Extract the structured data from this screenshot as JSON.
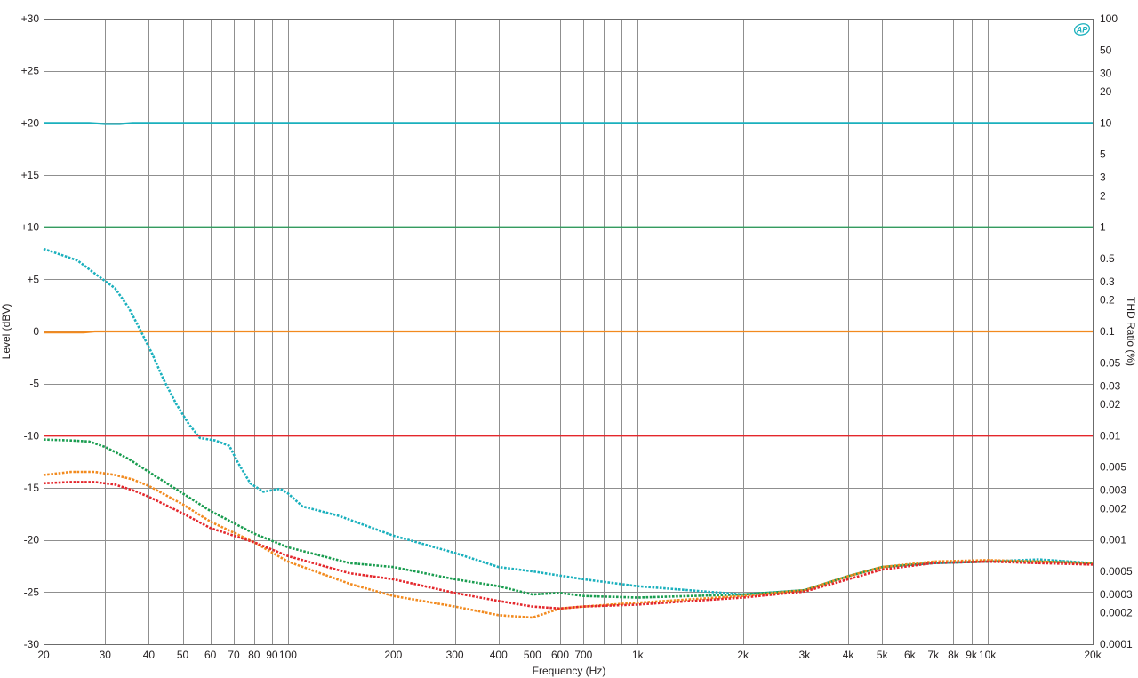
{
  "logo_text": "AP",
  "chart_data": {
    "type": "line",
    "title": "",
    "xlabel": "Frequency (Hz)",
    "ylabel": "Level (dBV)",
    "y2label": "THD Ratio (%)",
    "x_scale": "log",
    "y2_scale": "log",
    "xlim": [
      20,
      20000
    ],
    "ylim": [
      -30,
      30
    ],
    "y2lim": [
      0.0001,
      100
    ],
    "grid": true,
    "x_ticks": [
      {
        "v": 20,
        "label": "20"
      },
      {
        "v": 30,
        "label": "30"
      },
      {
        "v": 40,
        "label": "40"
      },
      {
        "v": 50,
        "label": "50"
      },
      {
        "v": 60,
        "label": "60"
      },
      {
        "v": 70,
        "label": "70"
      },
      {
        "v": 80,
        "label": "80"
      },
      {
        "v": 90,
        "label": "90"
      },
      {
        "v": 100,
        "label": "100"
      },
      {
        "v": 200,
        "label": "200"
      },
      {
        "v": 300,
        "label": "300"
      },
      {
        "v": 400,
        "label": "400"
      },
      {
        "v": 500,
        "label": "500"
      },
      {
        "v": 600,
        "label": "600"
      },
      {
        "v": 700,
        "label": "700"
      },
      {
        "v": 800,
        "label": ""
      },
      {
        "v": 900,
        "label": ""
      },
      {
        "v": 1000,
        "label": "1k"
      },
      {
        "v": 2000,
        "label": "2k"
      },
      {
        "v": 3000,
        "label": "3k"
      },
      {
        "v": 4000,
        "label": "4k"
      },
      {
        "v": 5000,
        "label": "5k"
      },
      {
        "v": 6000,
        "label": "6k"
      },
      {
        "v": 7000,
        "label": "7k"
      },
      {
        "v": 8000,
        "label": "8k"
      },
      {
        "v": 9000,
        "label": "9k"
      },
      {
        "v": 10000,
        "label": "10k"
      },
      {
        "v": 20000,
        "label": "20k"
      }
    ],
    "y_ticks": [
      {
        "v": 30,
        "label": "+30"
      },
      {
        "v": 25,
        "label": "+25"
      },
      {
        "v": 20,
        "label": "+20"
      },
      {
        "v": 15,
        "label": "+15"
      },
      {
        "v": 10,
        "label": "+10"
      },
      {
        "v": 5,
        "label": "+5"
      },
      {
        "v": 0,
        "label": "0"
      },
      {
        "v": -5,
        "label": "-5"
      },
      {
        "v": -10,
        "label": "-10"
      },
      {
        "v": -15,
        "label": "-15"
      },
      {
        "v": -20,
        "label": "-20"
      },
      {
        "v": -25,
        "label": "-25"
      },
      {
        "v": -30,
        "label": "-30"
      }
    ],
    "y2_ticks": [
      {
        "v": 100,
        "label": "100"
      },
      {
        "v": 50,
        "label": "50"
      },
      {
        "v": 30,
        "label": "30"
      },
      {
        "v": 20,
        "label": "20"
      },
      {
        "v": 10,
        "label": "10"
      },
      {
        "v": 5,
        "label": "5"
      },
      {
        "v": 3,
        "label": "3"
      },
      {
        "v": 2,
        "label": "2"
      },
      {
        "v": 1,
        "label": "1"
      },
      {
        "v": 0.5,
        "label": "0.5"
      },
      {
        "v": 0.3,
        "label": "0.3"
      },
      {
        "v": 0.2,
        "label": "0.2"
      },
      {
        "v": 0.1,
        "label": "0.1"
      },
      {
        "v": 0.05,
        "label": "0.05"
      },
      {
        "v": 0.03,
        "label": "0.03"
      },
      {
        "v": 0.02,
        "label": "0.02"
      },
      {
        "v": 0.01,
        "label": "0.01"
      },
      {
        "v": 0.005,
        "label": "0.005"
      },
      {
        "v": 0.003,
        "label": "0.003"
      },
      {
        "v": 0.002,
        "label": "0.002"
      },
      {
        "v": 0.001,
        "label": "0.001"
      },
      {
        "v": 0.0005,
        "label": "0.0005"
      },
      {
        "v": 0.0003,
        "label": "0.0003"
      },
      {
        "v": 0.0002,
        "label": "0.0002"
      },
      {
        "v": 0.0001,
        "label": "0.0001"
      }
    ],
    "series": [
      {
        "color": "#1ab0bd",
        "axis": "left",
        "style": "solid",
        "x": [
          20,
          27,
          30,
          33,
          36,
          20000
        ],
        "y": [
          20,
          20,
          19.9,
          19.9,
          20,
          20
        ]
      },
      {
        "color": "#1a9d50",
        "axis": "left",
        "style": "solid",
        "x": [
          20,
          20000
        ],
        "y": [
          10,
          10
        ]
      },
      {
        "color": "#f28a1e",
        "axis": "left",
        "style": "solid",
        "x": [
          20,
          26,
          28,
          20000
        ],
        "y": [
          -0.1,
          -0.1,
          0,
          0
        ]
      },
      {
        "color": "#e4272c",
        "axis": "left",
        "style": "solid",
        "x": [
          20,
          20000
        ],
        "y": [
          -10,
          -10
        ]
      },
      {
        "color": "#1ab0bd",
        "axis": "right",
        "style": "dotted",
        "x": [
          20,
          25,
          28,
          32,
          35,
          38,
          41,
          44,
          48,
          52,
          56,
          62,
          68,
          72,
          78,
          85,
          95,
          100,
          110,
          140,
          200,
          300,
          400,
          500,
          700,
          1000,
          2000,
          3000,
          4000,
          5000,
          7000,
          10000,
          14000,
          20000
        ],
        "y": [
          0.62,
          0.48,
          0.36,
          0.26,
          0.17,
          0.1,
          0.06,
          0.035,
          0.02,
          0.013,
          0.0095,
          0.009,
          0.008,
          0.0055,
          0.0035,
          0.0029,
          0.0031,
          0.0028,
          0.0021,
          0.0017,
          0.0011,
          0.00075,
          0.00055,
          0.0005,
          0.00042,
          0.00036,
          0.0003,
          0.00033,
          0.00045,
          0.00055,
          0.0006,
          0.00062,
          0.00065,
          0.0006
        ]
      },
      {
        "color": "#1a9d50",
        "axis": "right",
        "style": "dotted",
        "x": [
          20,
          24,
          27,
          30,
          35,
          40,
          50,
          60,
          80,
          100,
          150,
          200,
          300,
          400,
          500,
          600,
          700,
          1000,
          2000,
          3000,
          4000,
          5000,
          7000,
          10000,
          14000,
          20000
        ],
        "y": [
          0.0092,
          0.009,
          0.0088,
          0.0078,
          0.006,
          0.0045,
          0.0028,
          0.0019,
          0.00115,
          0.00085,
          0.0006,
          0.00055,
          0.00042,
          0.00036,
          0.0003,
          0.00031,
          0.00029,
          0.00028,
          0.0003,
          0.00033,
          0.00045,
          0.00055,
          0.0006,
          0.00062,
          0.00062,
          0.0006
        ]
      },
      {
        "color": "#f28a1e",
        "axis": "right",
        "style": "dotted",
        "x": [
          20,
          24,
          28,
          32,
          36,
          40,
          50,
          60,
          80,
          100,
          150,
          200,
          300,
          400,
          500,
          600,
          700,
          1000,
          2000,
          3000,
          4000,
          5000,
          7000,
          10000,
          14000,
          20000
        ],
        "y": [
          0.0042,
          0.0045,
          0.0045,
          0.0042,
          0.0038,
          0.0033,
          0.0022,
          0.0015,
          0.00095,
          0.00062,
          0.00038,
          0.00029,
          0.00023,
          0.00019,
          0.00018,
          0.00022,
          0.00023,
          0.00025,
          0.00029,
          0.00033,
          0.00045,
          0.00055,
          0.00062,
          0.00064,
          0.00062,
          0.0006
        ]
      },
      {
        "color": "#e4272c",
        "axis": "right",
        "style": "dotted",
        "x": [
          20,
          24,
          28,
          32,
          36,
          40,
          50,
          60,
          80,
          100,
          150,
          200,
          300,
          400,
          500,
          600,
          700,
          1000,
          2000,
          3000,
          4000,
          5000,
          7000,
          10000,
          14000,
          20000
        ],
        "y": [
          0.0035,
          0.0036,
          0.0036,
          0.0034,
          0.003,
          0.0026,
          0.0018,
          0.0013,
          0.00095,
          0.0007,
          0.00048,
          0.00042,
          0.00031,
          0.00026,
          0.00023,
          0.00022,
          0.00023,
          0.00024,
          0.00028,
          0.00032,
          0.00042,
          0.00052,
          0.0006,
          0.00062,
          0.0006,
          0.00058
        ]
      }
    ]
  }
}
